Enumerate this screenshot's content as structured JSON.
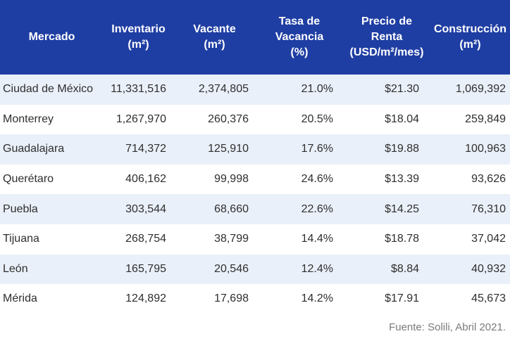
{
  "table": {
    "headers": [
      {
        "l1": "Mercado",
        "l2": "",
        "l3": ""
      },
      {
        "l1": "Inventario",
        "l2": "(m²)",
        "l3": ""
      },
      {
        "l1": "Vacante",
        "l2": "(m²)",
        "l3": ""
      },
      {
        "l1": "Tasa de",
        "l2": "Vacancia",
        "l3": "(%)"
      },
      {
        "l1": "Precio de",
        "l2": "Renta",
        "l3": "(USD/m²/mes)"
      },
      {
        "l1": "Construcción",
        "l2": "(m²)",
        "l3": ""
      }
    ],
    "rows": [
      [
        "Ciudad de México",
        "11,331,516",
        "2,374,805",
        "21.0%",
        "$21.30",
        "1,069,392"
      ],
      [
        "Monterrey",
        "1,267,970",
        "260,376",
        "20.5%",
        "$18.04",
        "259,849"
      ],
      [
        "Guadalajara",
        "714,372",
        "125,910",
        "17.6%",
        "$19.88",
        "100,963"
      ],
      [
        "Querétaro",
        "406,162",
        "99,998",
        "24.6%",
        "$13.39",
        "93,626"
      ],
      [
        "Puebla",
        "303,544",
        "68,660",
        "22.6%",
        "$14.25",
        "76,310"
      ],
      [
        "Tijuana",
        "268,754",
        "38,799",
        "14.4%",
        "$18.78",
        "37,042"
      ],
      [
        "León",
        "165,795",
        "20,546",
        "12.4%",
        "$8.84",
        "40,932"
      ],
      [
        "Mérida",
        "124,892",
        "17,698",
        "14.2%",
        "$17.91",
        "45,673"
      ]
    ]
  },
  "source": "Fuente: Solili, Abril 2021.",
  "colors": {
    "header_bg": "#1f3ea3",
    "header_text": "#ffffff",
    "row_alt_bg": "#eaf0f9"
  }
}
